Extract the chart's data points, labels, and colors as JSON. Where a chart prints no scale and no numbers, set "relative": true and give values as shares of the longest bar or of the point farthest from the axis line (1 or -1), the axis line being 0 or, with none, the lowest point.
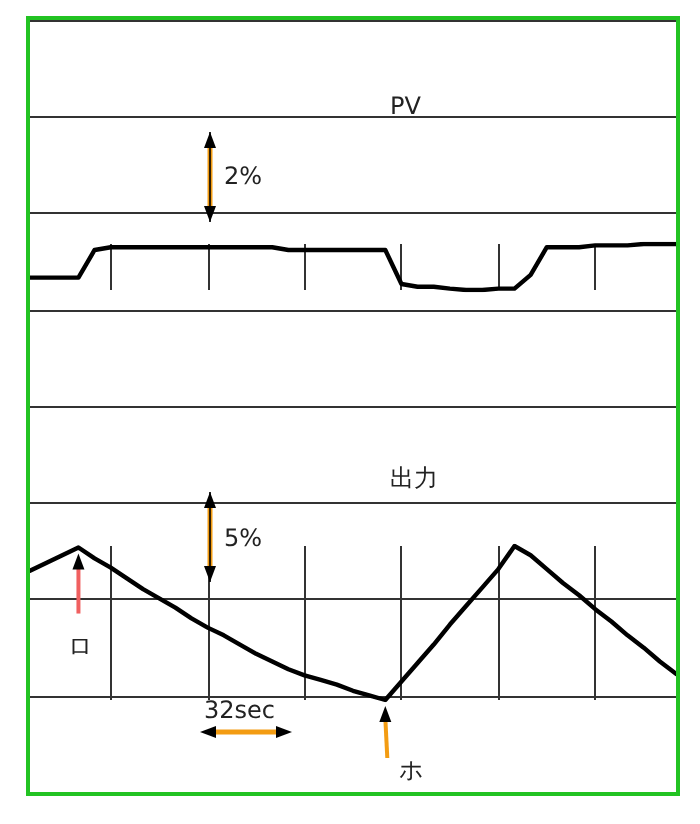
{
  "chart_data": [
    {
      "type": "line",
      "title": "PV",
      "relative": true,
      "grid": true,
      "marker": "none",
      "line_style": "solid",
      "categories": [
        null,
        null,
        null,
        null,
        null,
        null,
        null,
        null,
        null,
        null,
        null,
        null,
        null,
        null,
        null,
        null,
        null,
        null,
        null,
        null,
        null,
        null,
        null,
        null,
        null,
        null,
        null,
        null,
        null,
        null,
        null,
        null,
        null,
        null,
        null,
        null,
        null,
        null,
        null,
        null,
        null
      ],
      "series": [
        {
          "color": "#000000",
          "values": [
            0.27,
            0.27,
            0.27,
            0.27,
            0.87,
            0.93,
            0.93,
            0.93,
            0.93,
            0.93,
            0.93,
            0.93,
            0.93,
            0.93,
            0.93,
            0.93,
            0.87,
            0.87,
            0.87,
            0.87,
            0.87,
            0.87,
            0.87,
            0.13,
            0.07,
            0.07,
            0.03,
            0,
            0,
            0.03,
            0.03,
            0.33,
            0.93,
            0.93,
            0.93,
            0.97,
            0.97,
            0.97,
            1,
            1,
            1
          ]
        }
      ],
      "annotations": [
        "2%"
      ]
    },
    {
      "type": "line",
      "title": "出力",
      "relative": true,
      "grid": true,
      "marker": "none",
      "line_style": "solid",
      "categories": [
        null,
        null,
        null,
        null,
        null,
        null,
        null,
        null,
        null,
        null,
        null,
        null,
        null,
        null,
        null,
        null,
        null,
        null,
        null,
        null,
        null,
        null,
        null,
        null,
        null,
        null,
        null,
        null,
        null,
        null,
        null,
        null,
        null,
        null,
        null,
        null,
        null,
        null,
        null,
        null,
        null
      ],
      "series": [
        {
          "color": "#000000",
          "values": [
            0.84,
            0.89,
            0.94,
            0.99,
            0.92,
            0.86,
            0.79,
            0.72,
            0.66,
            0.6,
            0.53,
            0.47,
            0.42,
            0.36,
            0.3,
            0.25,
            0.2,
            0.16,
            0.13,
            0.1,
            0.06,
            0.03,
            0,
            0.12,
            0.24,
            0.36,
            0.49,
            0.61,
            0.73,
            0.85,
            1,
            0.94,
            0.85,
            0.76,
            0.68,
            0.59,
            0.51,
            0.42,
            0.34,
            0.25,
            0.17
          ]
        }
      ],
      "annotations": [
        "5%",
        "32sec",
        "ロ",
        "ホ"
      ]
    }
  ]
}
